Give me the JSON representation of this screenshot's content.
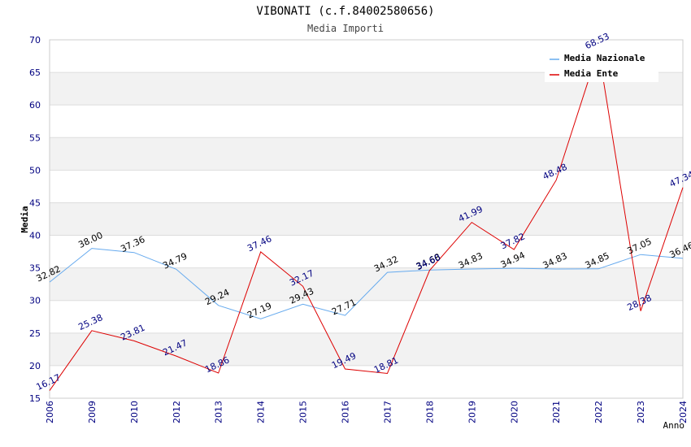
{
  "chart_data": {
    "type": "line",
    "title": "VIBONATI (c.f.84002580656)",
    "subtitle": "Media Importi",
    "xlabel": "Anno",
    "ylabel": "Media",
    "ylim": [
      15,
      70
    ],
    "yticks": [
      "15",
      "20",
      "25",
      "30",
      "35",
      "40",
      "45",
      "50",
      "55",
      "60",
      "65",
      "70"
    ],
    "grid": true,
    "legend_position": "top-right",
    "categories": [
      "2006",
      "2009",
      "2010",
      "2012",
      "2013",
      "2014",
      "2015",
      "2016",
      "2017",
      "2018",
      "2019",
      "2020",
      "2021",
      "2022",
      "2023",
      "2024"
    ],
    "series": [
      {
        "name": "Media Nazionale",
        "color": "#66aaee",
        "label_color": "#000000",
        "values": [
          32.82,
          38.0,
          37.36,
          34.79,
          29.24,
          27.19,
          29.43,
          27.71,
          34.32,
          34.68,
          34.83,
          34.94,
          34.83,
          34.85,
          37.05,
          36.46
        ],
        "labels": [
          "32.82",
          "38.00",
          "37.36",
          "34.79",
          "29.24",
          "27.19",
          "29.43",
          "27.71",
          "34.32",
          "34.68",
          "34.83",
          "34.94",
          "34.83",
          "34.85",
          "37.05",
          "36.46"
        ]
      },
      {
        "name": "Media Ente",
        "color": "#dd0000",
        "label_color": "#000080",
        "values": [
          16.17,
          25.38,
          23.81,
          21.47,
          18.86,
          37.46,
          32.17,
          19.49,
          18.81,
          34.6,
          41.99,
          37.82,
          48.48,
          68.53,
          28.38,
          47.34
        ],
        "labels": [
          "16.17",
          "25.38",
          "23.81",
          "21.47",
          "18.86",
          "37.46",
          "32.17",
          "19.49",
          "18.81",
          "34.60",
          "41.99",
          "37.82",
          "48.48",
          "68.53",
          "28.38",
          "47.34"
        ]
      }
    ],
    "colors": {
      "band": "#f2f2f2",
      "gridline": "#dddddd",
      "axis_text": "#000080",
      "title_text": "#000000",
      "subtitle_text": "#444444"
    }
  }
}
